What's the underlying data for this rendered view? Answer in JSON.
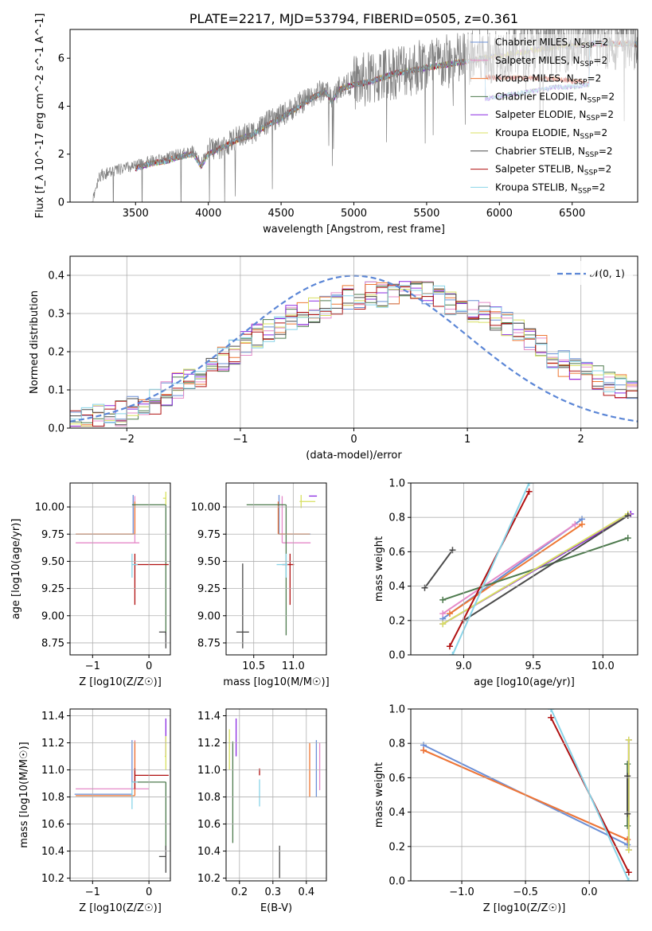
{
  "colors": [
    "#6b8fd6",
    "#e58ac8",
    "#ee7733",
    "#4d7a4d",
    "#8a2be2",
    "#d8e060",
    "#4a4a4a",
    "#b01010",
    "#88d4e8"
  ],
  "model_names": [
    "Chabrier MILES",
    "Salpeter MILES",
    "Kroupa MILES",
    "Chabrier ELODIE",
    "Salpeter ELODIE",
    "Kroupa ELODIE",
    "Chabrier STELIB",
    "Salpeter STELIB",
    "Kroupa STELIB"
  ],
  "chart_data": [
    {
      "id": "spectrum",
      "type": "line",
      "title": "PLATE=2217, MJD=53794, FIBERID=0505, z=0.361",
      "xlabel": "wavelength [Angstrom, rest frame]",
      "ylabel": "Flux [f_λ 10^-17 erg cm^-2 s^-1 A^-1]",
      "xlim": [
        3050,
        6950
      ],
      "ylim": [
        0,
        7.2
      ],
      "xticks": [
        3500,
        4000,
        4500,
        5000,
        5500,
        6000,
        6500
      ],
      "yticks": [
        0,
        2,
        4,
        6
      ],
      "legend_position": "upper right",
      "legend_suffix": ", N_SSP=2",
      "data_continuum": [
        [
          3200,
          0
        ],
        [
          3250,
          1.1
        ],
        [
          3350,
          1.3
        ],
        [
          3500,
          1.5
        ],
        [
          3600,
          1.7
        ],
        [
          3700,
          1.8
        ],
        [
          3800,
          2.0
        ],
        [
          3900,
          2.1
        ],
        [
          3950,
          1.6
        ],
        [
          4000,
          2.2
        ],
        [
          4100,
          2.3
        ],
        [
          4200,
          2.7
        ],
        [
          4300,
          2.9
        ],
        [
          4400,
          3.3
        ],
        [
          4500,
          3.6
        ],
        [
          4600,
          4.0
        ],
        [
          4700,
          4.4
        ],
        [
          4800,
          4.7
        ],
        [
          4850,
          4.3
        ],
        [
          4900,
          4.8
        ],
        [
          5000,
          5.0
        ],
        [
          5100,
          5.1
        ],
        [
          5200,
          5.3
        ],
        [
          5300,
          5.5
        ],
        [
          5400,
          5.6
        ],
        [
          5500,
          5.7
        ],
        [
          5600,
          5.8
        ],
        [
          5700,
          5.9
        ],
        [
          5800,
          6.0
        ],
        [
          5900,
          6.1
        ],
        [
          6000,
          6.2
        ],
        [
          6100,
          6.3
        ],
        [
          6200,
          6.4
        ],
        [
          6300,
          6.5
        ],
        [
          6400,
          6.6
        ],
        [
          6500,
          6.6
        ],
        [
          6600,
          6.7
        ]
      ],
      "model_continuum": [
        [
          3500,
          1.4
        ],
        [
          3600,
          1.6
        ],
        [
          3700,
          1.7
        ],
        [
          3800,
          1.9
        ],
        [
          3900,
          2.0
        ],
        [
          3950,
          1.5
        ],
        [
          4000,
          2.0
        ],
        [
          4100,
          2.3
        ],
        [
          4200,
          2.6
        ],
        [
          4300,
          2.8
        ],
        [
          4400,
          3.2
        ],
        [
          4500,
          3.5
        ],
        [
          4600,
          3.9
        ],
        [
          4700,
          4.3
        ],
        [
          4800,
          4.6
        ],
        [
          4850,
          4.2
        ],
        [
          4900,
          4.7
        ],
        [
          5000,
          4.9
        ],
        [
          5100,
          5.0
        ],
        [
          5200,
          5.2
        ],
        [
          5300,
          5.4
        ],
        [
          5400,
          5.5
        ],
        [
          5500,
          5.6
        ],
        [
          5600,
          5.7
        ],
        [
          5700,
          5.8
        ],
        [
          5800,
          5.9
        ],
        [
          5900,
          6.0
        ],
        [
          6000,
          6.1
        ],
        [
          6100,
          6.2
        ],
        [
          6200,
          6.3
        ],
        [
          6300,
          6.4
        ],
        [
          6400,
          6.5
        ],
        [
          6500,
          6.5
        ],
        [
          6600,
          6.6
        ]
      ]
    },
    {
      "id": "residuals",
      "type": "line",
      "xlabel": "(data-model)/error",
      "ylabel": "Normed distribution",
      "xlim": [
        -2.5,
        2.5
      ],
      "ylim": [
        0,
        0.45
      ],
      "xticks": [
        -2,
        -1,
        0,
        1,
        2
      ],
      "yticks": [
        0.0,
        0.1,
        0.2,
        0.3,
        0.4
      ],
      "legend": "𝒩(0, 1)",
      "legend_position": "upper right",
      "hist_bins": [
        -2.5,
        2.5,
        50
      ],
      "hist_base": [
        0.02,
        0.025,
        0.03,
        0.035,
        0.04,
        0.05,
        0.06,
        0.07,
        0.09,
        0.11,
        0.12,
        0.14,
        0.16,
        0.18,
        0.2,
        0.22,
        0.24,
        0.26,
        0.27,
        0.29,
        0.3,
        0.31,
        0.32,
        0.33,
        0.34,
        0.34,
        0.35,
        0.35,
        0.36,
        0.36,
        0.36,
        0.35,
        0.34,
        0.33,
        0.32,
        0.31,
        0.3,
        0.29,
        0.27,
        0.25,
        0.23,
        0.21,
        0.19,
        0.17,
        0.15,
        0.14,
        0.13,
        0.12,
        0.11,
        0.1
      ]
    },
    {
      "id": "age_vs_Z",
      "type": "scatter",
      "xlabel": "Z [log10(Z/Z☉)]",
      "ylabel": "age  [log10(age/yr)]",
      "xlim": [
        -1.4,
        0.38
      ],
      "ylim": [
        8.64,
        10.22
      ],
      "xticks": [
        -1,
        0
      ],
      "yticks": [
        8.75,
        9.0,
        9.25,
        9.5,
        9.75,
        10.0
      ],
      "points": [
        {
          "c": 0,
          "x": -0.28,
          "y": 9.75,
          "xl": 1.02,
          "xh": 0.0,
          "yl": 0.0,
          "yh": 0.36
        },
        {
          "c": 1,
          "x": -0.25,
          "y": 9.67,
          "xl": 1.05,
          "xh": 0.08,
          "yl": 0.0,
          "yh": 0.43
        },
        {
          "c": 2,
          "x": -0.25,
          "y": 9.75,
          "xl": 1.05,
          "xh": 0.0,
          "yl": 0.0,
          "yh": 0.3
        },
        {
          "c": 3,
          "x": -0.3,
          "y": 10.02,
          "xl": 0.0,
          "xh": 0.6,
          "yl": 0.0,
          "yh": 0.0
        },
        {
          "c": 3,
          "x": 0.3,
          "y": 10.02,
          "xl": 0.0,
          "xh": 0.0,
          "yl": 1.2,
          "yh": 0.0
        },
        {
          "c": 4,
          "x": 0.3,
          "y": 10.1,
          "xl": 0.0,
          "xh": 0.0,
          "yl": 0.0,
          "yh": 0.0
        },
        {
          "c": 5,
          "x": 0.3,
          "y": 10.08,
          "xl": 0.05,
          "xh": 0.0,
          "yl": 0.06,
          "yh": 0.06
        },
        {
          "c": 6,
          "x": 0.3,
          "y": 8.85,
          "xl": 0.12,
          "xh": 0.0,
          "yl": 0.15,
          "yh": 0.0
        },
        {
          "c": 7,
          "x": -0.25,
          "y": 9.47,
          "xl": 0.0,
          "xh": 0.6,
          "yl": 0.37,
          "yh": 0.1
        },
        {
          "c": 8,
          "x": -0.3,
          "y": 9.47,
          "xl": 0.0,
          "xh": 0.1,
          "yl": 0.12,
          "yh": 0.1
        }
      ]
    },
    {
      "id": "age_vs_mass",
      "type": "scatter",
      "xlabel": "mass [log10(M/M☉)]",
      "ylabel": "",
      "xlim": [
        10.15,
        11.42
      ],
      "ylim": [
        8.64,
        10.22
      ],
      "xticks": [
        10.5,
        11.0
      ],
      "yticks": [
        8.75,
        9.0,
        9.25,
        9.5,
        9.75,
        10.0
      ],
      "points": [
        {
          "c": 0,
          "x": 10.82,
          "y": 9.75,
          "xl": 0.0,
          "xh": 0.4,
          "yl": 0.0,
          "yh": 0.36
        },
        {
          "c": 1,
          "x": 10.86,
          "y": 9.67,
          "xl": 0.0,
          "xh": 0.36,
          "yl": 0.0,
          "yh": 0.43
        },
        {
          "c": 2,
          "x": 10.81,
          "y": 9.75,
          "xl": 0.0,
          "xh": 0.4,
          "yl": 0.0,
          "yh": 0.3
        },
        {
          "c": 3,
          "x": 10.91,
          "y": 10.02,
          "xl": 0.5,
          "xh": 0.0,
          "yl": 1.2,
          "yh": 0.0
        },
        {
          "c": 4,
          "x": 11.2,
          "y": 10.1,
          "xl": 0.0,
          "xh": 0.1,
          "yl": 0.0,
          "yh": 0.0
        },
        {
          "c": 5,
          "x": 11.1,
          "y": 10.05,
          "xl": 0.02,
          "xh": 0.18,
          "yl": 0.06,
          "yh": 0.06
        },
        {
          "c": 6,
          "x": 10.36,
          "y": 8.85,
          "xl": 0.08,
          "xh": 0.08,
          "yl": 0.15,
          "yh": 0.63
        },
        {
          "c": 7,
          "x": 10.96,
          "y": 9.47,
          "xl": 0.1,
          "xh": 0.05,
          "yl": 0.37,
          "yh": 0.1
        },
        {
          "c": 8,
          "x": 10.91,
          "y": 9.47,
          "xl": 0.12,
          "xh": 0.02,
          "yl": 0.12,
          "yh": 0.1
        }
      ]
    },
    {
      "id": "weight_vs_age",
      "type": "line",
      "xlabel": "age  [log10(age/yr)]",
      "ylabel": "mass weight",
      "xlim": [
        8.62,
        10.25
      ],
      "ylim": [
        0.0,
        1.0
      ],
      "xticks": [
        9.0,
        9.5,
        10.0
      ],
      "yticks": [
        0.0,
        0.2,
        0.4,
        0.6,
        0.8,
        1.0
      ],
      "series": [
        {
          "c": 0,
          "x": [
            8.85,
            9.85
          ],
          "y": [
            0.21,
            0.79
          ]
        },
        {
          "c": 1,
          "x": [
            8.85,
            9.8
          ],
          "y": [
            0.24,
            0.76
          ]
        },
        {
          "c": 2,
          "x": [
            8.9,
            9.85
          ],
          "y": [
            0.24,
            0.76
          ]
        },
        {
          "c": 3,
          "x": [
            8.85,
            10.18
          ],
          "y": [
            0.32,
            0.68
          ]
        },
        {
          "c": 4,
          "x": [
            8.85,
            10.2
          ],
          "y": [
            0.18,
            0.82
          ]
        },
        {
          "c": 5,
          "x": [
            8.85,
            10.18
          ],
          "y": [
            0.18,
            0.82
          ]
        },
        {
          "c": 6,
          "x": [
            8.72,
            8.92
          ],
          "y": [
            0.39,
            0.61
          ]
        },
        {
          "c": 6,
          "x": [
            9.0,
            10.18
          ],
          "y": [
            0.2,
            0.81
          ]
        },
        {
          "c": 7,
          "x": [
            8.9,
            9.47
          ],
          "y": [
            0.05,
            0.95
          ]
        },
        {
          "c": 8,
          "x": [
            8.92,
            9.47
          ],
          "y": [
            0.0,
            1.0
          ]
        }
      ]
    },
    {
      "id": "mass_vs_Z",
      "type": "scatter",
      "xlabel": "Z [log10(Z/Z☉)]",
      "ylabel": "mass [log10(M/M☉)]",
      "xlim": [
        -1.4,
        0.38
      ],
      "ylim": [
        10.18,
        11.45
      ],
      "xticks": [
        -1,
        0
      ],
      "yticks": [
        10.2,
        10.4,
        10.6,
        10.8,
        11.0,
        11.2,
        11.4
      ],
      "points": [
        {
          "c": 0,
          "x": -0.3,
          "y": 10.82,
          "xl": 1.02,
          "xh": 0.0,
          "yl": 0.0,
          "yh": 0.4
        },
        {
          "c": 1,
          "x": -0.25,
          "y": 10.86,
          "xl": 1.05,
          "xh": 0.25,
          "yl": 0.0,
          "yh": 0.36
        },
        {
          "c": 2,
          "x": -0.25,
          "y": 10.81,
          "xl": 1.05,
          "xh": 0.0,
          "yl": 0.0,
          "yh": 0.4
        },
        {
          "c": 3,
          "x": -0.3,
          "y": 10.91,
          "xl": 0.0,
          "xh": 0.6,
          "yl": 0.0,
          "yh": 0.0
        },
        {
          "c": 3,
          "x": 0.3,
          "y": 10.91,
          "xl": 0.0,
          "xh": 0.0,
          "yl": 0.5,
          "yh": 0.0
        },
        {
          "c": 4,
          "x": 0.3,
          "y": 11.2,
          "xl": 0.0,
          "xh": 0.0,
          "yl": 0.1,
          "yh": 0.18
        },
        {
          "c": 5,
          "x": 0.3,
          "y": 11.1,
          "xl": 0.02,
          "xh": 0.0,
          "yl": 0.1,
          "yh": 0.15
        },
        {
          "c": 6,
          "x": 0.3,
          "y": 10.36,
          "xl": 0.12,
          "xh": 0.0,
          "yl": 0.12,
          "yh": 0.08
        },
        {
          "c": 7,
          "x": -0.25,
          "y": 10.96,
          "xl": 0.0,
          "xh": 0.6,
          "yl": 0.1,
          "yh": 0.05
        },
        {
          "c": 8,
          "x": -0.3,
          "y": 10.91,
          "xl": 0.0,
          "xh": 0.1,
          "yl": 0.2,
          "yh": 0.0
        }
      ]
    },
    {
      "id": "mass_vs_ebv",
      "type": "scatter",
      "xlabel": "E(B-V)",
      "ylabel": "",
      "xlim": [
        0.16,
        0.46
      ],
      "ylim": [
        10.18,
        11.45
      ],
      "xticks": [
        0.2,
        0.3,
        0.4
      ],
      "yticks": [
        10.2,
        10.4,
        10.6,
        10.8,
        11.0,
        11.2,
        11.4
      ],
      "points": [
        {
          "c": 0,
          "x": 0.43,
          "y": 11.0,
          "xl": 0.0,
          "xh": 0.0,
          "yl": 0.2,
          "yh": 0.22
        },
        {
          "c": 1,
          "x": 0.44,
          "y": 11.05,
          "xl": 0.0,
          "xh": 0.0,
          "yl": 0.2,
          "yh": 0.15
        },
        {
          "c": 2,
          "x": 0.41,
          "y": 11.0,
          "xl": 0.0,
          "xh": 0.0,
          "yl": 0.2,
          "yh": 0.2
        },
        {
          "c": 3,
          "x": 0.18,
          "y": 10.91,
          "xl": 0.0,
          "xh": 0.0,
          "yl": 0.45,
          "yh": 0.3
        },
        {
          "c": 4,
          "x": 0.19,
          "y": 11.2,
          "xl": 0.0,
          "xh": 0.0,
          "yl": 0.1,
          "yh": 0.18
        },
        {
          "c": 5,
          "x": 0.17,
          "y": 11.1,
          "xl": 0.0,
          "xh": 0.0,
          "yl": 0.1,
          "yh": 0.2
        },
        {
          "c": 6,
          "x": 0.32,
          "y": 10.36,
          "xl": 0.0,
          "xh": 0.0,
          "yl": 0.16,
          "yh": 0.08
        },
        {
          "c": 7,
          "x": 0.26,
          "y": 10.96,
          "xl": 0.0,
          "xh": 0.0,
          "yl": 0.0,
          "yh": 0.05
        },
        {
          "c": 8,
          "x": 0.26,
          "y": 10.83,
          "xl": 0.0,
          "xh": 0.0,
          "yl": 0.1,
          "yh": 0.1
        }
      ]
    },
    {
      "id": "weight_vs_Z",
      "type": "line",
      "xlabel": "Z [log10(Z/Z☉)]",
      "ylabel": "mass weight",
      "xlim": [
        -1.4,
        0.38
      ],
      "ylim": [
        0.0,
        1.0
      ],
      "xticks": [
        -1.0,
        -0.5,
        0.0
      ],
      "yticks": [
        0.0,
        0.2,
        0.4,
        0.6,
        0.8,
        1.0
      ],
      "series": [
        {
          "c": 0,
          "x": [
            -1.3,
            0.3
          ],
          "y": [
            0.79,
            0.21
          ]
        },
        {
          "c": 1,
          "x": [
            -1.3,
            0.3
          ],
          "y": [
            0.76,
            0.24
          ]
        },
        {
          "c": 2,
          "x": [
            -1.3,
            0.3
          ],
          "y": [
            0.76,
            0.24
          ]
        },
        {
          "c": 7,
          "x": [
            -0.3,
            0.31
          ],
          "y": [
            0.95,
            0.05
          ]
        },
        {
          "c": 8,
          "x": [
            -0.3,
            0.31
          ],
          "y": [
            1.0,
            0.0
          ]
        },
        {
          "c": 3,
          "x": [
            0.3,
            0.3
          ],
          "y": [
            0.32,
            0.68
          ]
        },
        {
          "c": 4,
          "x": [
            0.31,
            0.31
          ],
          "y": [
            0.18,
            0.82
          ]
        },
        {
          "c": 5,
          "x": [
            0.31,
            0.31
          ],
          "y": [
            0.18,
            0.82
          ]
        },
        {
          "c": 6,
          "x": [
            0.3,
            0.3
          ],
          "y": [
            0.39,
            0.61
          ]
        }
      ]
    }
  ]
}
